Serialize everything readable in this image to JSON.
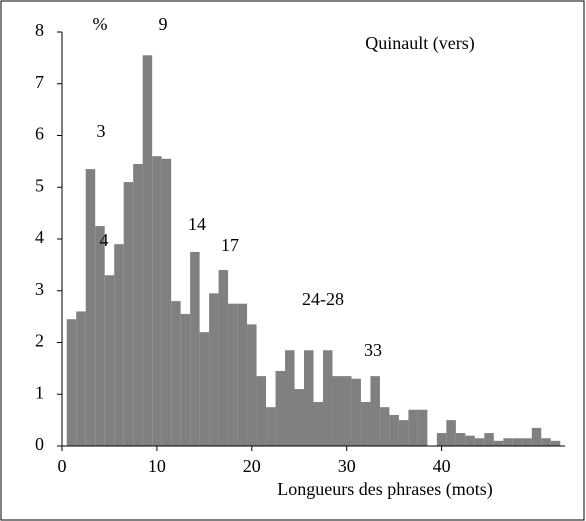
{
  "chart_data": {
    "type": "bar",
    "annotations": [
      "%",
      "9",
      "Quinault (vers)",
      "3",
      "4",
      "14",
      "17",
      "24-28",
      "33"
    ],
    "x_label": "Longueurs des phrases (mots)",
    "x": [
      1,
      2,
      3,
      4,
      5,
      6,
      7,
      8,
      9,
      10,
      11,
      12,
      13,
      14,
      15,
      16,
      17,
      18,
      19,
      20,
      21,
      22,
      23,
      24,
      25,
      26,
      27,
      28,
      29,
      30,
      31,
      32,
      33,
      34,
      35,
      36,
      37,
      38,
      39,
      40,
      41,
      42,
      43,
      44,
      45,
      46,
      47,
      48,
      49,
      50,
      51,
      52
    ],
    "values": [
      2.45,
      2.6,
      5.35,
      4.25,
      3.3,
      3.9,
      5.1,
      5.45,
      7.55,
      5.6,
      5.55,
      2.8,
      2.55,
      3.75,
      2.2,
      2.95,
      3.4,
      2.75,
      2.75,
      2.35,
      1.35,
      0.75,
      1.45,
      1.85,
      1.1,
      1.85,
      0.85,
      1.85,
      1.35,
      1.35,
      1.3,
      0.85,
      1.35,
      0.75,
      0.6,
      0.5,
      0.7,
      0.7,
      0,
      0.25,
      0.5,
      0.25,
      0.2,
      0.15,
      0.25,
      0.1,
      0.15,
      0.15,
      0.15,
      0.35,
      0.15,
      0.1
    ],
    "color": "#808080",
    "xlim": [
      0,
      53
    ],
    "xticks": [
      0,
      10,
      20,
      30,
      40
    ],
    "ylim": [
      0,
      8
    ],
    "yticks": [
      0,
      1,
      2,
      3,
      4,
      5,
      6,
      7,
      8
    ]
  }
}
